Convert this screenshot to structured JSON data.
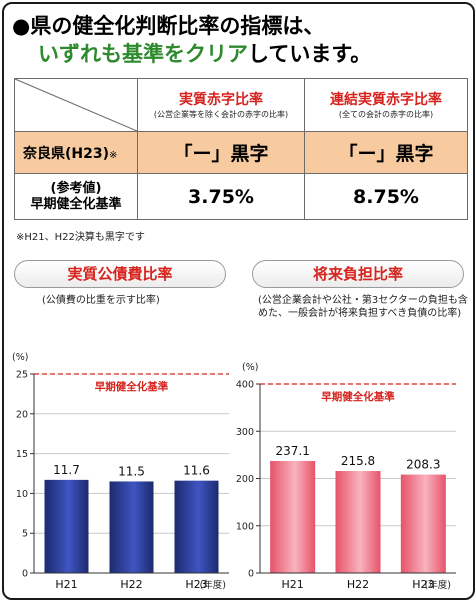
{
  "headline": {
    "line1": "●県の健全化判断比率の指標は、",
    "line2_green": "いずれも基準をクリア",
    "line2_rest": "しています。"
  },
  "table": {
    "col1_title": "実質赤字比率",
    "col1_sub": "(公営企業等を除く会計の赤字の比率)",
    "col2_title": "連結実質赤字比率",
    "col2_sub": "(全ての会計の赤字の比率)",
    "row1_label": "奈良県(H23)",
    "row1_mark": "※",
    "row1_val1": "「ー」黒字",
    "row1_val2": "「ー」黒字",
    "row2_label_a": "(参考値)",
    "row2_label_b": "早期健全化基準",
    "row2_val1": "3.75%",
    "row2_val2": "8.75%"
  },
  "note": "※H21、H22決算も黒字です",
  "colors": {
    "accent_red": "#d6231e",
    "table_orange": "#f7caa0",
    "headline_green": "#2d8a2d",
    "bar_blue_dark": "#1c2a6e",
    "bar_blue_light": "#3f55c2",
    "bar_pink_dark": "#e65369",
    "bar_pink_light": "#f9b3be"
  },
  "chart_data": [
    {
      "type": "bar",
      "title": "実質公債費比率",
      "subtitle": "(公債費の比重を示す比率)",
      "ylabel": "(%)",
      "xlabel": "(年度)",
      "categories": [
        "H21",
        "H22",
        "H23"
      ],
      "values": [
        11.7,
        11.5,
        11.6
      ],
      "value_labels": [
        "11.7",
        "11.5",
        "11.6"
      ],
      "yticks": [
        0,
        5,
        10,
        15,
        20,
        25
      ],
      "ylim": [
        0,
        25
      ],
      "reference_line": {
        "value": 25,
        "label": "早期健全化基準"
      }
    },
    {
      "type": "bar",
      "title": "将来負担比率",
      "subtitle": "(公営企業会計や公社・第3セクターの負担も含めた、一般会計が将来負担すべき負債の比率)",
      "ylabel": "(%)",
      "xlabel": "(年度)",
      "categories": [
        "H21",
        "H22",
        "H23"
      ],
      "values": [
        237.1,
        215.8,
        208.3
      ],
      "value_labels": [
        "237.1",
        "215.8",
        "208.3"
      ],
      "yticks": [
        0,
        100,
        200,
        300,
        400
      ],
      "ylim": [
        0,
        400
      ],
      "reference_line": {
        "value": 400,
        "label": "早期健全化基準"
      }
    }
  ]
}
